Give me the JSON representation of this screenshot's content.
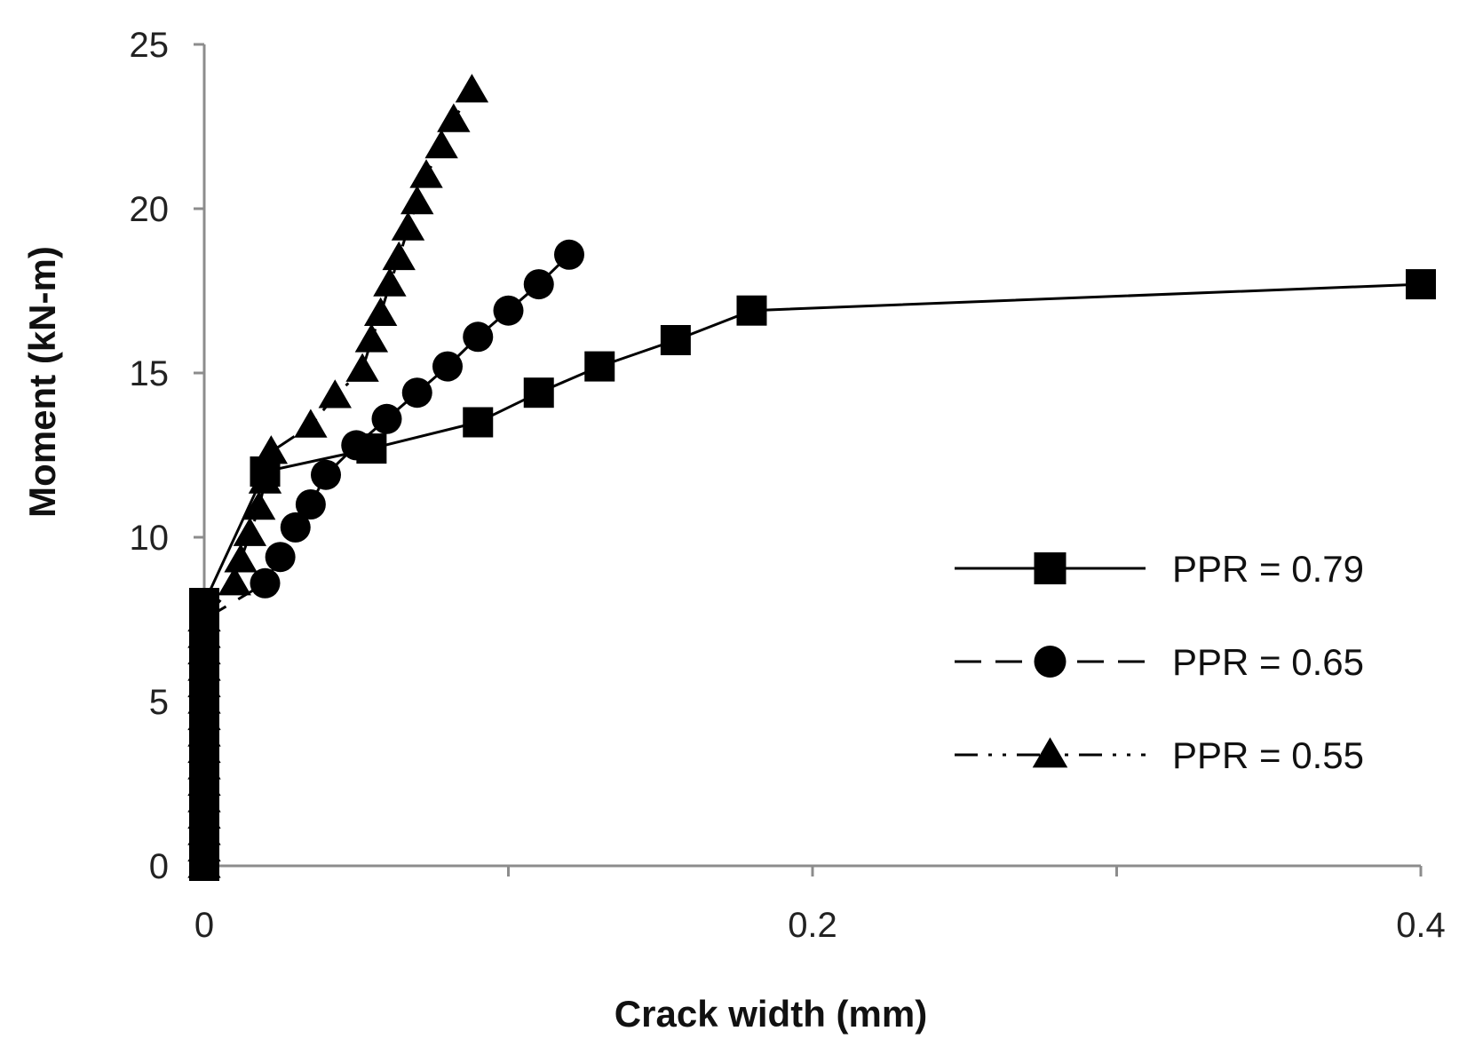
{
  "chart_data": {
    "type": "line",
    "title": "",
    "xlabel": "Crack width (mm)",
    "ylabel": "Moment (kN-m)",
    "xlim": [
      0,
      0.4
    ],
    "ylim": [
      0,
      25
    ],
    "x_ticks": [
      0,
      0.2,
      0.4
    ],
    "x_tick_labels": [
      "0",
      "0.2",
      "0.4"
    ],
    "x_minor_ticks": [
      0.1,
      0.3
    ],
    "y_ticks": [
      0,
      5,
      10,
      15,
      20,
      25
    ],
    "y_tick_labels": [
      "0",
      "5",
      "10",
      "15",
      "20",
      "25"
    ],
    "grid": false,
    "legend_position": "right",
    "series": [
      {
        "name": "PPR = 0.79",
        "marker": "square",
        "line_style": "solid",
        "color": "#000000",
        "x": [
          0,
          0,
          0,
          0,
          0,
          0,
          0,
          0,
          0,
          0,
          0,
          0,
          0,
          0,
          0,
          0,
          0.0,
          0.02,
          0.055,
          0.09,
          0.11,
          0.13,
          0.155,
          0.18,
          0.4
        ],
        "y": [
          0,
          0.5,
          1,
          1.5,
          2,
          2.5,
          3,
          3.5,
          4,
          4.5,
          5,
          5.5,
          6,
          6.5,
          7,
          7.5,
          8,
          12.0,
          12.7,
          13.5,
          14.4,
          15.2,
          16.0,
          16.9,
          17.7
        ]
      },
      {
        "name": "PPR = 0.65",
        "marker": "circle",
        "line_style": "dashed",
        "color": "#000000",
        "x": [
          0,
          0,
          0,
          0,
          0,
          0,
          0,
          0,
          0,
          0,
          0,
          0,
          0,
          0,
          0,
          0,
          0.02,
          0.025,
          0.03,
          0.035,
          0.04,
          0.05,
          0.06,
          0.07,
          0.08,
          0.09,
          0.1,
          0.11,
          0.12
        ],
        "y": [
          0,
          0.5,
          1,
          1.5,
          2,
          2.5,
          3,
          3.5,
          4,
          4.5,
          5,
          5.5,
          6,
          6.5,
          7,
          7.5,
          8.6,
          9.4,
          10.3,
          11.0,
          11.9,
          12.8,
          13.6,
          14.4,
          15.2,
          16.1,
          16.9,
          17.7,
          18.6
        ]
      },
      {
        "name": "PPR = 0.55",
        "marker": "triangle",
        "line_style": "dash-dot-dot",
        "color": "#000000",
        "x": [
          0,
          0,
          0,
          0,
          0,
          0,
          0,
          0,
          0,
          0,
          0,
          0,
          0,
          0,
          0,
          0,
          0.01,
          0.012,
          0.015,
          0.018,
          0.02,
          0.022,
          0.035,
          0.043,
          0.052,
          0.055,
          0.058,
          0.061,
          0.064,
          0.067,
          0.07,
          0.073,
          0.078,
          0.082,
          0.088
        ],
        "y": [
          0,
          0.5,
          1,
          1.5,
          2,
          2.5,
          3,
          3.5,
          4,
          4.5,
          5,
          5.5,
          6,
          6.5,
          7,
          7.5,
          8.6,
          9.3,
          10.1,
          10.9,
          11.7,
          12.6,
          13.4,
          14.3,
          15.1,
          16.0,
          16.8,
          17.7,
          18.5,
          19.4,
          20.2,
          21.0,
          21.9,
          22.7,
          23.6
        ]
      }
    ]
  }
}
